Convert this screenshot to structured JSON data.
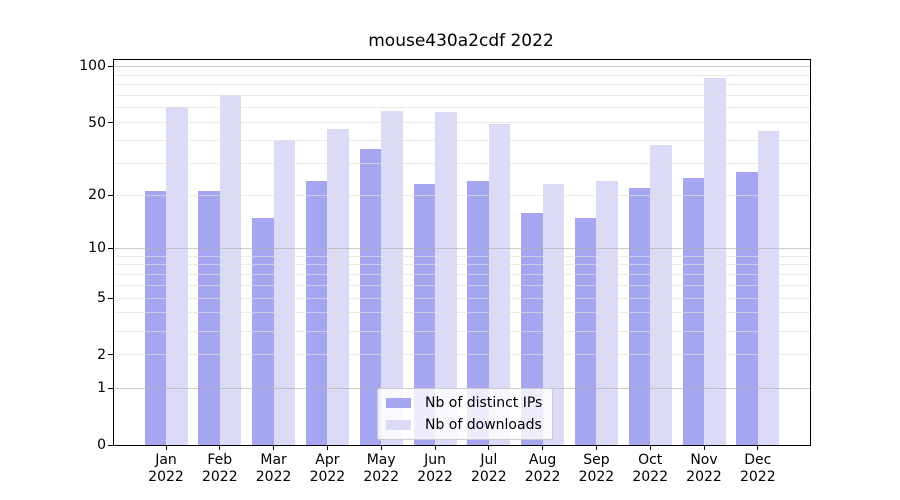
{
  "chart_data": {
    "type": "bar",
    "title": "mouse430a2cdf 2022",
    "xlabel": "",
    "ylabel": "",
    "x_tick_year": "2022",
    "categories": [
      "Jan",
      "Feb",
      "Mar",
      "Apr",
      "May",
      "Jun",
      "Jul",
      "Aug",
      "Sep",
      "Oct",
      "Nov",
      "Dec"
    ],
    "series": [
      {
        "name": "Nb of distinct IPs",
        "color": "#a6a6f0",
        "values": [
          21,
          21,
          15,
          24,
          36,
          23,
          24,
          16,
          15,
          22,
          25,
          27
        ]
      },
      {
        "name": "Nb of downloads",
        "color": "#dbdbf8",
        "values": [
          61,
          70,
          40,
          46,
          58,
          57,
          49,
          23,
          24,
          38,
          87,
          45
        ]
      }
    ],
    "yscale": "log1p",
    "ylim": [
      0,
      110
    ],
    "yticks": [
      0,
      1,
      2,
      5,
      10,
      20,
      50,
      100
    ],
    "grid": {
      "major": [
        1,
        10,
        100
      ],
      "minor": [
        2,
        3,
        4,
        5,
        6,
        7,
        8,
        9,
        20,
        30,
        40,
        50,
        60,
        70,
        80,
        90
      ]
    },
    "legend": {
      "position": "lower center",
      "entries": [
        "Nb of distinct IPs",
        "Nb of downloads"
      ]
    }
  },
  "colors": {
    "bar_distinct_ips": "#a6a6f0",
    "bar_downloads": "#dbdbf8",
    "grid_major": "#b0b0b0",
    "grid_minor": "#e1e1e1",
    "spine": "#000000",
    "legend_border": "#cccccc",
    "background": "#ffffff"
  }
}
